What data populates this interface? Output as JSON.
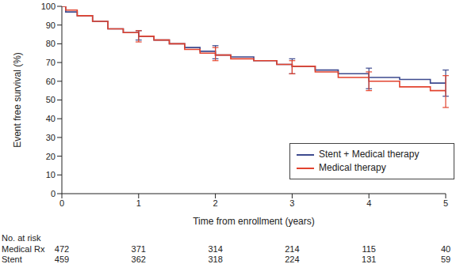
{
  "chart_data": {
    "type": "line",
    "line_style": "step",
    "x_label": "Time from enrollment (years)",
    "y_label": "Event free survival (%)",
    "x": [
      0,
      0.05,
      0.2,
      0.4,
      0.6,
      0.8,
      1,
      1.2,
      1.4,
      1.6,
      1.8,
      2,
      2.2,
      2.5,
      2.8,
      3,
      3.3,
      3.6,
      4,
      4.4,
      4.8,
      5
    ],
    "series": [
      {
        "name": "Stent + Medical therapy",
        "color": "#3d4a8e",
        "values": [
          100,
          97,
          95,
          92,
          88,
          86,
          84,
          82,
          80,
          78,
          76,
          74,
          73,
          71,
          69,
          68,
          66,
          64,
          62,
          61,
          59,
          59
        ],
        "error_bars": {
          "x": [
            1,
            2,
            3,
            4,
            5
          ],
          "low": [
            82,
            72,
            64,
            56,
            52
          ],
          "high": [
            87,
            79,
            72,
            67,
            66
          ]
        }
      },
      {
        "name": "Medical therapy",
        "color": "#e2432e",
        "values": [
          100,
          98,
          95,
          92,
          88,
          86,
          84,
          82,
          80,
          77,
          75,
          74,
          72,
          71,
          69,
          68,
          65,
          62,
          60,
          57,
          55,
          54
        ],
        "error_bars": {
          "x": [
            1,
            2,
            3,
            4,
            5
          ],
          "low": [
            81,
            71,
            64,
            55,
            46
          ],
          "high": [
            87,
            78,
            71,
            65,
            63
          ]
        }
      }
    ],
    "xlim": [
      0,
      5
    ],
    "xticks": [
      0,
      1,
      2,
      3,
      4,
      5
    ],
    "ylim": [
      0,
      100
    ],
    "yticks": [
      0,
      10,
      20,
      30,
      40,
      50,
      60,
      70,
      80,
      90,
      100
    ],
    "grid": false,
    "legend": "lower right",
    "risk_table": {
      "title": "No. at risk",
      "x": [
        0,
        1,
        2,
        3,
        4,
        5
      ],
      "rows": [
        {
          "label": "Medical Rx",
          "values": [
            472,
            371,
            314,
            214,
            115,
            40
          ]
        },
        {
          "label": "Stent",
          "values": [
            459,
            362,
            318,
            224,
            131,
            59
          ]
        }
      ]
    }
  }
}
